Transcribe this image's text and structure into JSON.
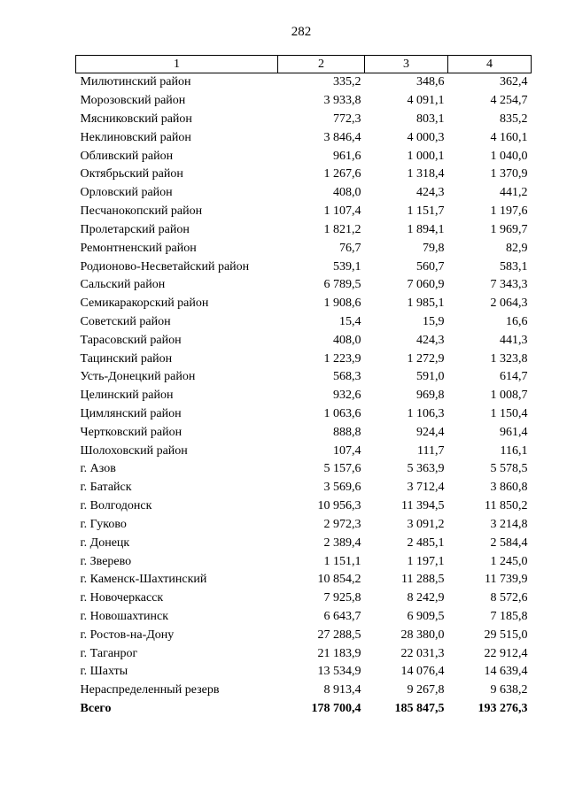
{
  "page_number": "282",
  "table": {
    "headers": [
      "1",
      "2",
      "3",
      "4"
    ],
    "rows": [
      [
        "Милютинский район",
        "335,2",
        "348,6",
        "362,4"
      ],
      [
        "Морозовский район",
        "3 933,8",
        "4 091,1",
        "4 254,7"
      ],
      [
        "Мясниковский район",
        "772,3",
        "803,1",
        "835,2"
      ],
      [
        "Неклиновский район",
        "3 846,4",
        "4 000,3",
        "4 160,1"
      ],
      [
        "Обливский район",
        "961,6",
        "1 000,1",
        "1 040,0"
      ],
      [
        "Октябрьский район",
        "1 267,6",
        "1 318,4",
        "1 370,9"
      ],
      [
        "Орловский район",
        "408,0",
        "424,3",
        "441,2"
      ],
      [
        "Песчанокопский район",
        "1 107,4",
        "1 151,7",
        "1 197,6"
      ],
      [
        "Пролетарский район",
        "1 821,2",
        "1 894,1",
        "1 969,7"
      ],
      [
        "Ремонтненский район",
        "76,7",
        "79,8",
        "82,9"
      ],
      [
        "Родионово-Несветайский район",
        "539,1",
        "560,7",
        "583,1"
      ],
      [
        "Сальский район",
        "6 789,5",
        "7 060,9",
        "7 343,3"
      ],
      [
        "Семикаракорский район",
        "1 908,6",
        "1 985,1",
        "2 064,3"
      ],
      [
        "Советский район",
        "15,4",
        "15,9",
        "16,6"
      ],
      [
        "Тарасовский район",
        "408,0",
        "424,3",
        "441,3"
      ],
      [
        "Тацинский район",
        "1 223,9",
        "1 272,9",
        "1 323,8"
      ],
      [
        "Усть-Донецкий район",
        "568,3",
        "591,0",
        "614,7"
      ],
      [
        "Целинский район",
        "932,6",
        "969,8",
        "1 008,7"
      ],
      [
        "Цимлянский район",
        "1 063,6",
        "1 106,3",
        "1 150,4"
      ],
      [
        "Чертковский район",
        "888,8",
        "924,4",
        "961,4"
      ],
      [
        "Шолоховский район",
        "107,4",
        "111,7",
        "116,1"
      ],
      [
        "г. Азов",
        "5 157,6",
        "5 363,9",
        "5 578,5"
      ],
      [
        "г. Батайск",
        "3 569,6",
        "3 712,4",
        "3 860,8"
      ],
      [
        "г. Волгодонск",
        "10 956,3",
        "11 394,5",
        "11 850,2"
      ],
      [
        "г. Гуково",
        "2 972,3",
        "3 091,2",
        "3 214,8"
      ],
      [
        "г. Донецк",
        "2 389,4",
        "2 485,1",
        "2 584,4"
      ],
      [
        "г. Зверево",
        "1 151,1",
        "1 197,1",
        "1 245,0"
      ],
      [
        "г. Каменск-Шахтинский",
        "10 854,2",
        "11 288,5",
        "11 739,9"
      ],
      [
        "г. Новочеркасск",
        "7 925,8",
        "8 242,9",
        "8 572,6"
      ],
      [
        "г. Новошахтинск",
        "6 643,7",
        "6 909,5",
        "7 185,8"
      ],
      [
        "г. Ростов-на-Дону",
        "27 288,5",
        "28 380,0",
        "29 515,0"
      ],
      [
        "г. Таганрог",
        "21 183,9",
        "22 031,3",
        "22 912,4"
      ],
      [
        "г. Шахты",
        "13 534,9",
        "14 076,4",
        "14 639,4"
      ],
      [
        "Нераспределенный резерв",
        "8 913,4",
        "9 267,8",
        "9 638,2"
      ]
    ],
    "total": [
      "Всего",
      "178 700,4",
      "185 847,5",
      "193 276,3"
    ]
  }
}
